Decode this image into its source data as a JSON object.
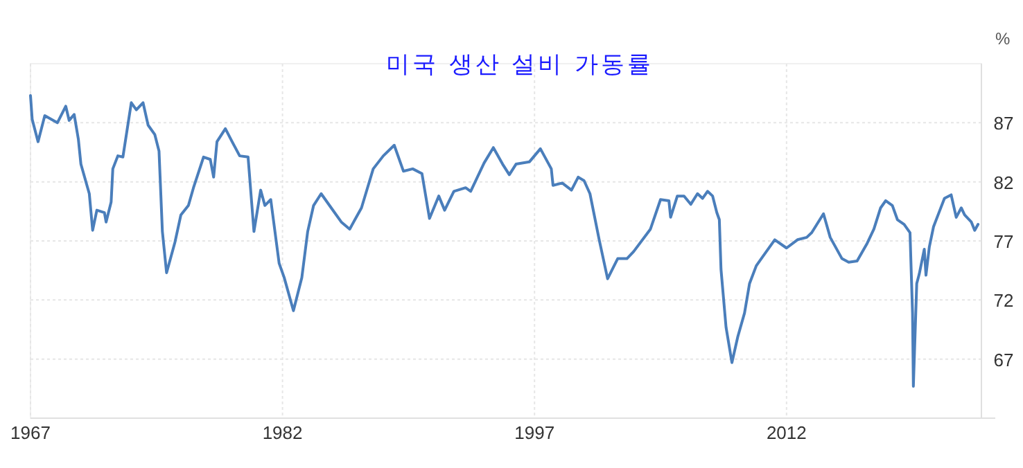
{
  "chart_data": {
    "type": "line",
    "title": "미국 생산 설비 가동률",
    "ylabel": "%",
    "xlim": [
      1967,
      2023.6
    ],
    "ylim": [
      62,
      92
    ],
    "xticks": [
      1967,
      1982,
      1997,
      2012
    ],
    "yticks": [
      67,
      72,
      77,
      82,
      87
    ],
    "grid": true,
    "series": [
      {
        "color": "#4a7ebb",
        "x": [
          1967.0,
          1967.1,
          1967.45,
          1967.85,
          1968.6,
          1969.1,
          1969.3,
          1969.6,
          1969.85,
          1970.0,
          1970.4,
          1970.5,
          1970.7,
          1970.95,
          1971.4,
          1971.5,
          1971.8,
          1971.9,
          1972.2,
          1972.5,
          1973.0,
          1973.3,
          1973.7,
          1974.0,
          1974.4,
          1974.65,
          1974.85,
          1975.1,
          1975.6,
          1975.95,
          1976.4,
          1976.7,
          1977.3,
          1977.7,
          1977.9,
          1978.1,
          1978.6,
          1979.0,
          1979.45,
          1979.95,
          1980.3,
          1980.7,
          1980.95,
          1981.3,
          1981.8,
          1982.1,
          1982.65,
          1983.15,
          1983.5,
          1983.85,
          1984.3,
          1984.9,
          1985.5,
          1986.0,
          1986.7,
          1987.4,
          1988.0,
          1988.65,
          1989.2,
          1989.75,
          1990.3,
          1990.75,
          1991.3,
          1991.65,
          1992.2,
          1992.9,
          1993.2,
          1994.0,
          1994.55,
          1995.1,
          1995.5,
          1995.9,
          1996.7,
          1997.35,
          1998.0,
          1998.1,
          1998.65,
          1999.2,
          1999.6,
          1999.95,
          2000.3,
          2000.85,
          2001.35,
          2001.95,
          2002.5,
          2002.9,
          2003.9,
          2004.5,
          2005.0,
          2005.1,
          2005.5,
          2005.9,
          2006.3,
          2006.7,
          2007.0,
          2007.3,
          2007.6,
          2007.85,
          2008.0,
          2008.1,
          2008.4,
          2008.75,
          2009.1,
          2009.5,
          2009.8,
          2010.2,
          2010.6,
          2011.3,
          2012.0,
          2012.65,
          2013.2,
          2013.5,
          2014.2,
          2014.6,
          2015.3,
          2015.7,
          2016.2,
          2016.8,
          2017.2,
          2017.6,
          2017.9,
          2018.3,
          2018.6,
          2019.0,
          2019.35,
          2019.5,
          2019.55,
          2019.75,
          2019.9,
          2020.2,
          2020.3,
          2020.5,
          2020.75,
          2021.1,
          2021.4,
          2021.8,
          2022.1,
          2022.4,
          2022.6,
          2023.0,
          2023.2,
          2023.4
        ],
        "values": [
          89.3,
          87.3,
          85.4,
          87.6,
          87.0,
          88.4,
          87.2,
          87.7,
          85.6,
          83.5,
          81.5,
          81.0,
          77.9,
          79.6,
          79.4,
          78.6,
          80.3,
          83.1,
          84.2,
          84.1,
          88.7,
          88.1,
          88.7,
          86.8,
          86.0,
          84.6,
          77.8,
          74.3,
          76.9,
          79.2,
          80.0,
          81.5,
          84.1,
          83.9,
          82.4,
          85.4,
          86.5,
          85.4,
          84.2,
          84.1,
          77.8,
          81.3,
          80.0,
          80.5,
          75.1,
          73.9,
          71.1,
          73.9,
          77.8,
          80.0,
          81.0,
          79.8,
          78.6,
          78.0,
          79.8,
          83.1,
          84.2,
          85.1,
          82.9,
          83.1,
          82.7,
          78.9,
          80.8,
          79.6,
          81.2,
          81.5,
          81.2,
          83.6,
          84.9,
          83.5,
          82.6,
          83.5,
          83.7,
          84.8,
          83.1,
          81.7,
          81.9,
          81.3,
          82.4,
          82.1,
          81.0,
          77.1,
          73.8,
          75.5,
          75.5,
          76.1,
          78.0,
          80.5,
          80.4,
          79.0,
          80.8,
          80.8,
          80.1,
          81.0,
          80.6,
          81.2,
          80.8,
          79.4,
          78.8,
          74.6,
          69.7,
          66.7,
          68.9,
          70.9,
          73.4,
          74.9,
          75.7,
          77.1,
          76.4,
          77.1,
          77.3,
          77.7,
          79.3,
          77.3,
          75.5,
          75.2,
          75.3,
          76.8,
          78.0,
          79.8,
          80.4,
          80.0,
          78.8,
          78.4,
          77.7,
          70.9,
          64.7,
          73.4,
          74.2,
          76.3,
          74.1,
          76.5,
          78.2,
          79.5,
          80.6,
          80.9,
          79.0,
          79.8,
          79.2,
          78.6,
          77.9,
          78.4
        ]
      }
    ]
  }
}
